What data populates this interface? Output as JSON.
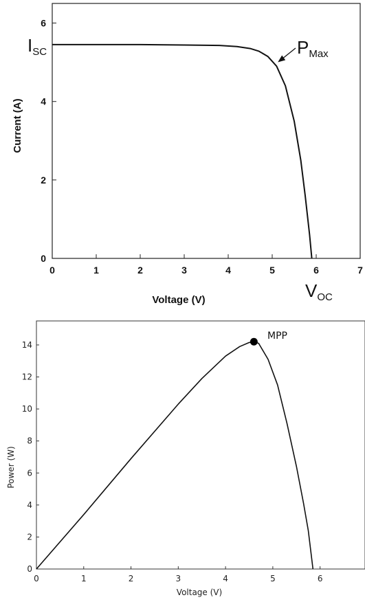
{
  "chart_data": [
    {
      "type": "line",
      "xlabel": "Voltage (V)",
      "ylabel": "Current (A)",
      "xlim": [
        0,
        7
      ],
      "ylim": [
        0,
        6.5
      ],
      "xticks": [
        "0",
        "1",
        "2",
        "3",
        "4",
        "5",
        "6",
        "7"
      ],
      "yticks": [
        "0",
        "2",
        "4",
        "6"
      ],
      "grid": false,
      "series": [
        {
          "x": [
            0,
            1,
            2,
            3,
            3.8,
            4.2,
            4.5,
            4.7,
            4.9,
            5.1,
            5.3,
            5.5,
            5.65,
            5.75,
            5.85,
            5.9
          ],
          "y": [
            5.45,
            5.45,
            5.45,
            5.44,
            5.43,
            5.4,
            5.35,
            5.28,
            5.15,
            4.9,
            4.4,
            3.5,
            2.5,
            1.6,
            0.6,
            0
          ]
        }
      ],
      "annotations": {
        "isc": {
          "main": "I",
          "sub": "SC",
          "x": 0,
          "y": 5.45
        },
        "voc": {
          "main": "V",
          "sub": "OC",
          "x": 5.9,
          "y": 0
        },
        "pmax": {
          "main": "P",
          "sub": "Max",
          "x": 5.05,
          "y": 4.95
        }
      }
    },
    {
      "type": "line",
      "xlabel": "Voltage (V)",
      "ylabel": "Power (W)",
      "xlim": [
        0,
        6.95
      ],
      "ylim": [
        0,
        15.5
      ],
      "xticks": [
        "0",
        "1",
        "2",
        "3",
        "4",
        "5",
        "6"
      ],
      "yticks": [
        "0",
        "2",
        "4",
        "6",
        "8",
        "10",
        "12",
        "14"
      ],
      "grid": false,
      "series": [
        {
          "x": [
            0,
            1,
            2,
            3,
            3.5,
            4.0,
            4.3,
            4.5,
            4.6,
            4.7,
            4.9,
            5.1,
            5.3,
            5.5,
            5.65,
            5.75,
            5.85
          ],
          "y": [
            0,
            3.4,
            6.9,
            10.3,
            11.9,
            13.3,
            13.9,
            14.15,
            14.2,
            14.1,
            13.1,
            11.5,
            9.1,
            6.4,
            4.1,
            2.4,
            0
          ]
        }
      ],
      "annotations": {
        "mpp": {
          "label": "MPP",
          "x": 4.6,
          "y": 14.2
        }
      }
    }
  ]
}
